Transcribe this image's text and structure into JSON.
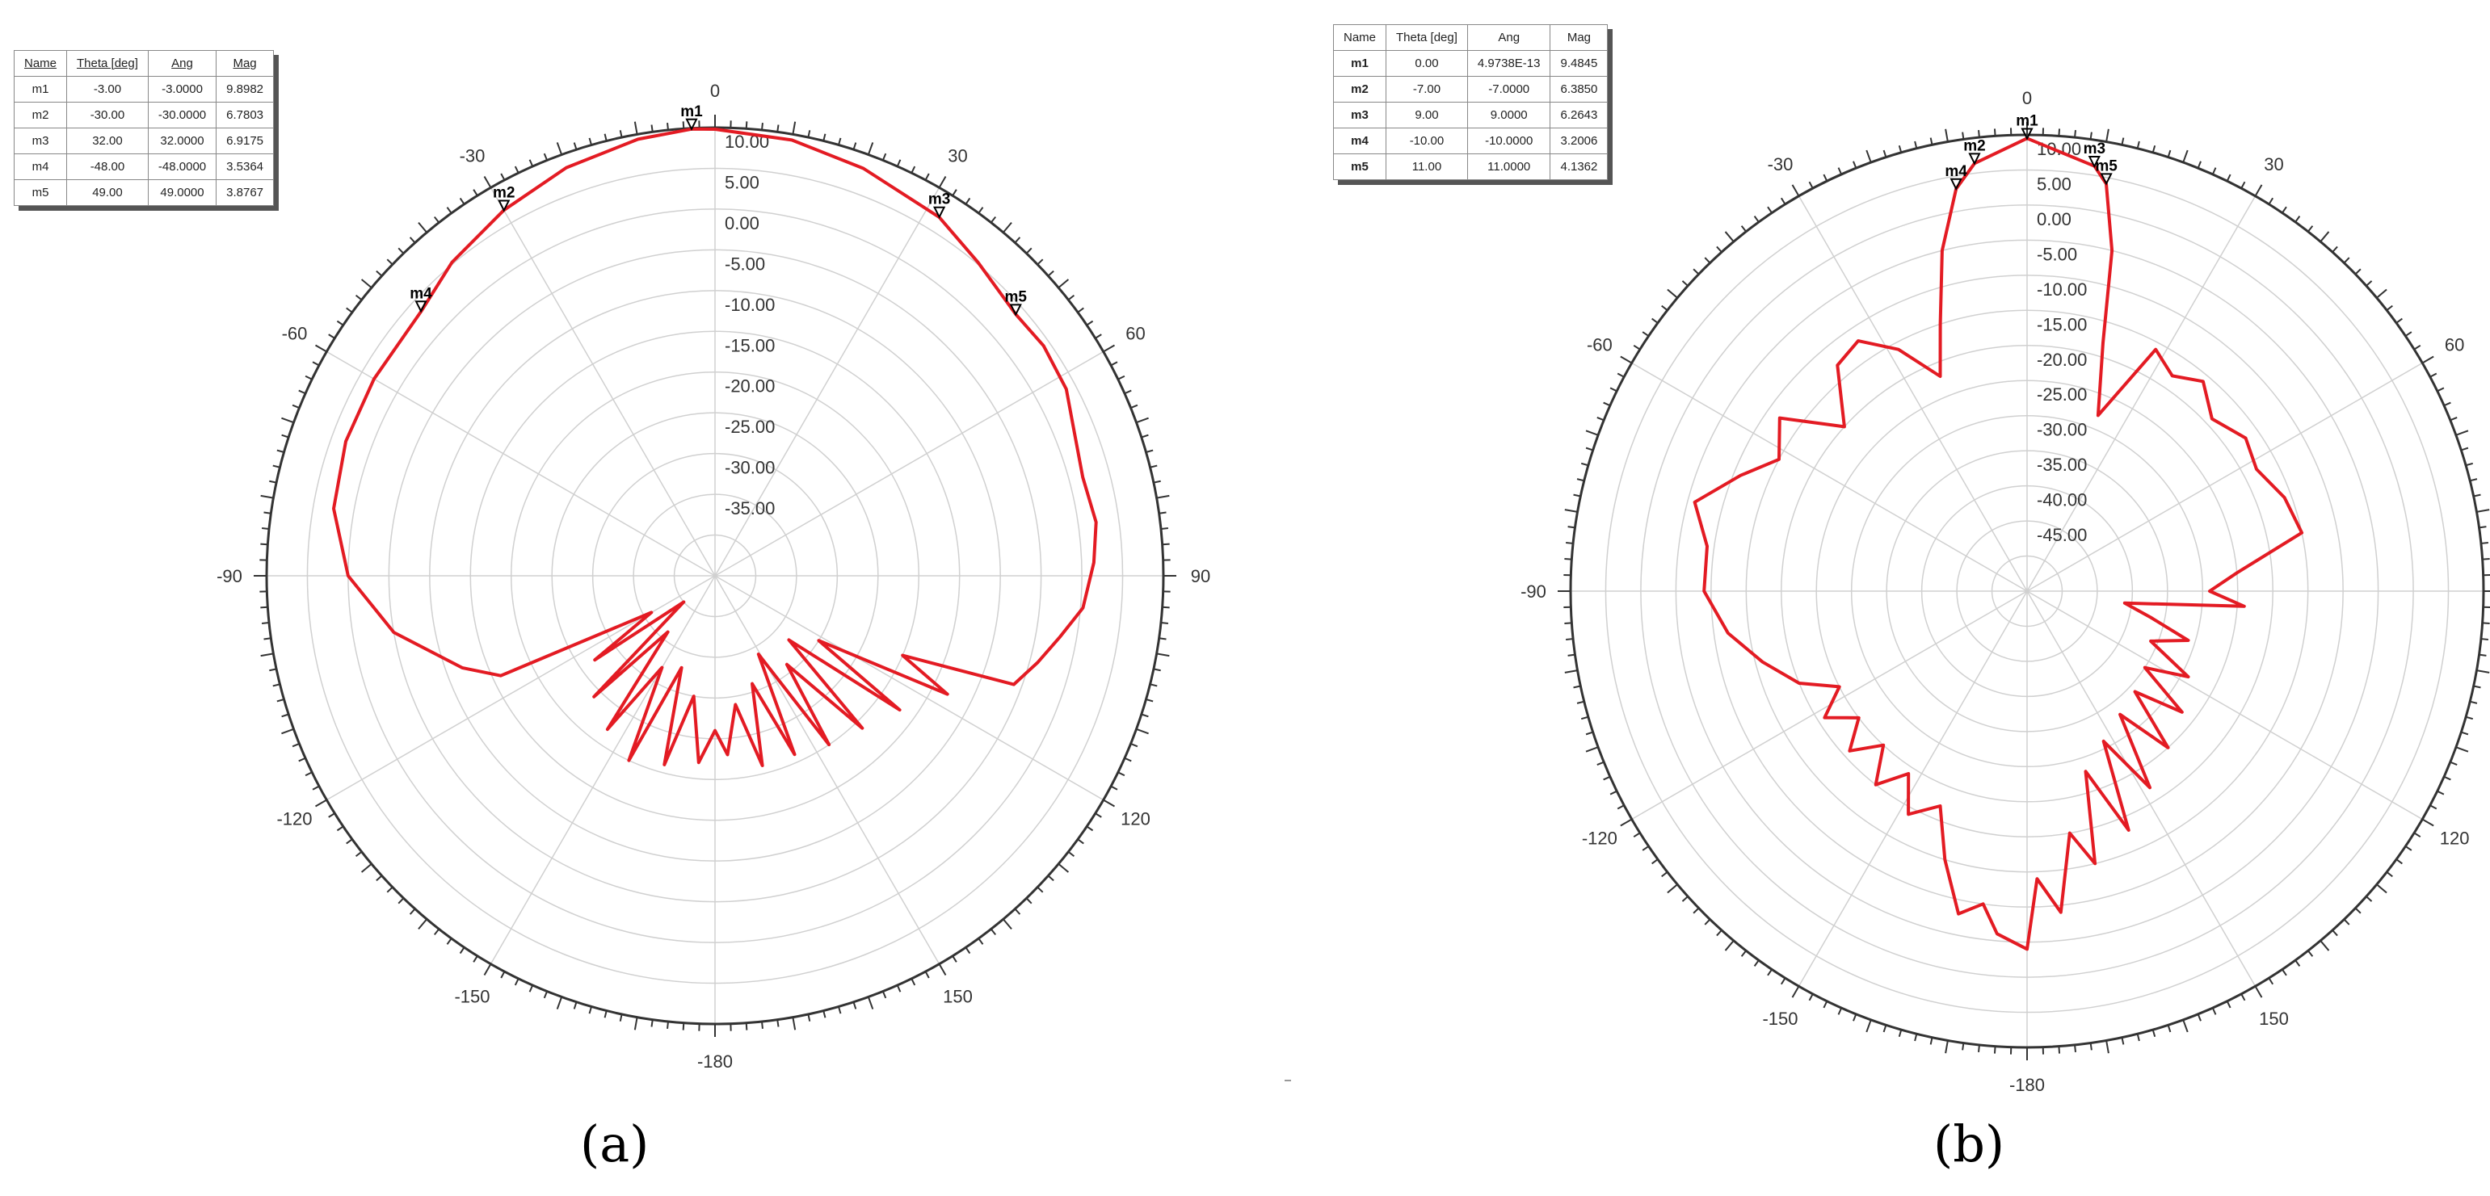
{
  "colors": {
    "trace": "#e31b23",
    "grid": "#d0d0d0",
    "axis": "#333333"
  },
  "chart_data": [
    {
      "panel_label": "(a)",
      "type": "polar-line",
      "r_ticks": [
        "10.00",
        "5.00",
        "0.00",
        "-5.00",
        "-10.00",
        "-15.00",
        "-20.00",
        "-25.00",
        "-30.00",
        "-35.00"
      ],
      "r_range": [
        -45,
        10
      ],
      "angle_ticks": [
        "0",
        "30",
        "60",
        "90",
        "120",
        "150",
        "-180",
        "-150",
        "-120",
        "-90",
        "-60",
        "-30"
      ],
      "table_headers": [
        "Name",
        "Theta [deg]",
        "Ang",
        "Mag"
      ],
      "markers": [
        {
          "name": "m1",
          "theta": "-3.00",
          "ang": "-3.0000",
          "mag": "9.8982"
        },
        {
          "name": "m2",
          "theta": "-30.00",
          "ang": "-30.0000",
          "mag": "6.7803"
        },
        {
          "name": "m3",
          "theta": "32.00",
          "ang": "32.0000",
          "mag": "6.9175"
        },
        {
          "name": "m4",
          "theta": "-48.00",
          "ang": "-48.0000",
          "mag": "3.5364"
        },
        {
          "name": "m5",
          "theta": "49.00",
          "ang": "49.0000",
          "mag": "3.8767"
        }
      ],
      "trace": [
        [
          -180,
          -26
        ],
        [
          -175,
          -22
        ],
        [
          -170,
          -30
        ],
        [
          -165,
          -21
        ],
        [
          -160,
          -33
        ],
        [
          -155,
          -20
        ],
        [
          -150,
          -32
        ],
        [
          -145,
          -22
        ],
        [
          -140,
          -36
        ],
        [
          -135,
          -24
        ],
        [
          -130,
          -40
        ],
        [
          -125,
          -27
        ],
        [
          -120,
          -36
        ],
        [
          -115,
          -16
        ],
        [
          -110,
          -12
        ],
        [
          -100,
          -5
        ],
        [
          -90,
          0
        ],
        [
          -80,
          2.5
        ],
        [
          -70,
          3.2
        ],
        [
          -60,
          3.3
        ],
        [
          -48,
          3.5
        ],
        [
          -40,
          5.2
        ],
        [
          -30,
          6.8
        ],
        [
          -20,
          8.3
        ],
        [
          -10,
          9.4
        ],
        [
          -3,
          9.9
        ],
        [
          0,
          9.8
        ],
        [
          10,
          9.3
        ],
        [
          20,
          8.2
        ],
        [
          32,
          6.9
        ],
        [
          40,
          5.2
        ],
        [
          49,
          3.9
        ],
        [
          55,
          4.2
        ],
        [
          62,
          3.8
        ],
        [
          68,
          2.5
        ],
        [
          75,
          1.7
        ],
        [
          82,
          2.2
        ],
        [
          88,
          1.5
        ],
        [
          95,
          0.3
        ],
        [
          100,
          -2
        ],
        [
          105,
          -4
        ],
        [
          110,
          -6
        ],
        [
          113,
          -20
        ],
        [
          117,
          -13
        ],
        [
          122,
          -30
        ],
        [
          126,
          -17
        ],
        [
          131,
          -33
        ],
        [
          136,
          -19
        ],
        [
          141,
          -31
        ],
        [
          146,
          -20
        ],
        [
          151,
          -34
        ],
        [
          156,
          -21
        ],
        [
          161,
          -31
        ],
        [
          166,
          -21
        ],
        [
          171,
          -29
        ],
        [
          176,
          -23
        ],
        [
          180,
          -26
        ]
      ]
    },
    {
      "panel_label": "(b)",
      "type": "polar-line",
      "r_ticks": [
        "10.00",
        "5.00",
        "0.00",
        "-5.00",
        "-10.00",
        "-15.00",
        "-20.00",
        "-25.00",
        "-30.00",
        "-35.00",
        "-40.00",
        "-45.00"
      ],
      "r_range": [
        -55,
        10
      ],
      "angle_ticks": [
        "0",
        "30",
        "60",
        "90",
        "120",
        "150",
        "-180",
        "-150",
        "-120",
        "-90",
        "-60",
        "-30"
      ],
      "table_headers": [
        "Name",
        "Theta [deg]",
        "Ang",
        "Mag"
      ],
      "markers": [
        {
          "name": "m1",
          "theta": "0.00",
          "ang": "4.9738E-13",
          "mag": "9.4845"
        },
        {
          "name": "m2",
          "theta": "-7.00",
          "ang": "-7.0000",
          "mag": "6.3850"
        },
        {
          "name": "m3",
          "theta": "9.00",
          "ang": "9.0000",
          "mag": "6.2643"
        },
        {
          "name": "m4",
          "theta": "-10.00",
          "ang": "-10.0000",
          "mag": "3.2006"
        },
        {
          "name": "m5",
          "theta": "11.00",
          "ang": "11.0000",
          "mag": "4.1362"
        }
      ],
      "trace": [
        [
          -180,
          -4
        ],
        [
          -175,
          -6
        ],
        [
          -172,
          -10
        ],
        [
          -168,
          -8
        ],
        [
          -163,
          -15
        ],
        [
          -158,
          -22
        ],
        [
          -152,
          -19
        ],
        [
          -147,
          -24
        ],
        [
          -142,
          -20
        ],
        [
          -137,
          -25
        ],
        [
          -132,
          -21
        ],
        [
          -127,
          -25
        ],
        [
          -122,
          -21
        ],
        [
          -117,
          -25
        ],
        [
          -112,
          -20
        ],
        [
          -105,
          -16
        ],
        [
          -98,
          -12
        ],
        [
          -90,
          -9
        ],
        [
          -82,
          -9
        ],
        [
          -75,
          -6
        ],
        [
          -68,
          -11
        ],
        [
          -62,
          -15
        ],
        [
          -55,
          -12
        ],
        [
          -48,
          -20
        ],
        [
          -40,
          -13
        ],
        [
          -34,
          -12
        ],
        [
          -28,
          -16
        ],
        [
          -22,
          -22
        ],
        [
          -18,
          -15
        ],
        [
          -14,
          -5
        ],
        [
          -10,
          3.2
        ],
        [
          -7,
          6.4
        ],
        [
          0,
          9.5
        ],
        [
          9,
          6.3
        ],
        [
          11,
          4.1
        ],
        [
          14,
          -5
        ],
        [
          17,
          -18
        ],
        [
          22,
          -28
        ],
        [
          28,
          -16
        ],
        [
          34,
          -18
        ],
        [
          40,
          -16
        ],
        [
          47,
          -19
        ],
        [
          55,
          -17
        ],
        [
          62,
          -18
        ],
        [
          70,
          -16
        ],
        [
          78,
          -15
        ],
        [
          85,
          -25
        ],
        [
          90,
          -29
        ],
        [
          94,
          -24
        ],
        [
          97,
          -41
        ],
        [
          102,
          -37
        ],
        [
          107,
          -31
        ],
        [
          112,
          -36
        ],
        [
          118,
          -29
        ],
        [
          123,
          -35
        ],
        [
          128,
          -27
        ],
        [
          133,
          -34
        ],
        [
          138,
          -25
        ],
        [
          143,
          -33
        ],
        [
          148,
          -22
        ],
        [
          153,
          -31
        ],
        [
          157,
          -18
        ],
        [
          162,
          -28
        ],
        [
          166,
          -15
        ],
        [
          170,
          -20
        ],
        [
          174,
          -9
        ],
        [
          178,
          -14
        ],
        [
          180,
          -4
        ]
      ]
    }
  ]
}
